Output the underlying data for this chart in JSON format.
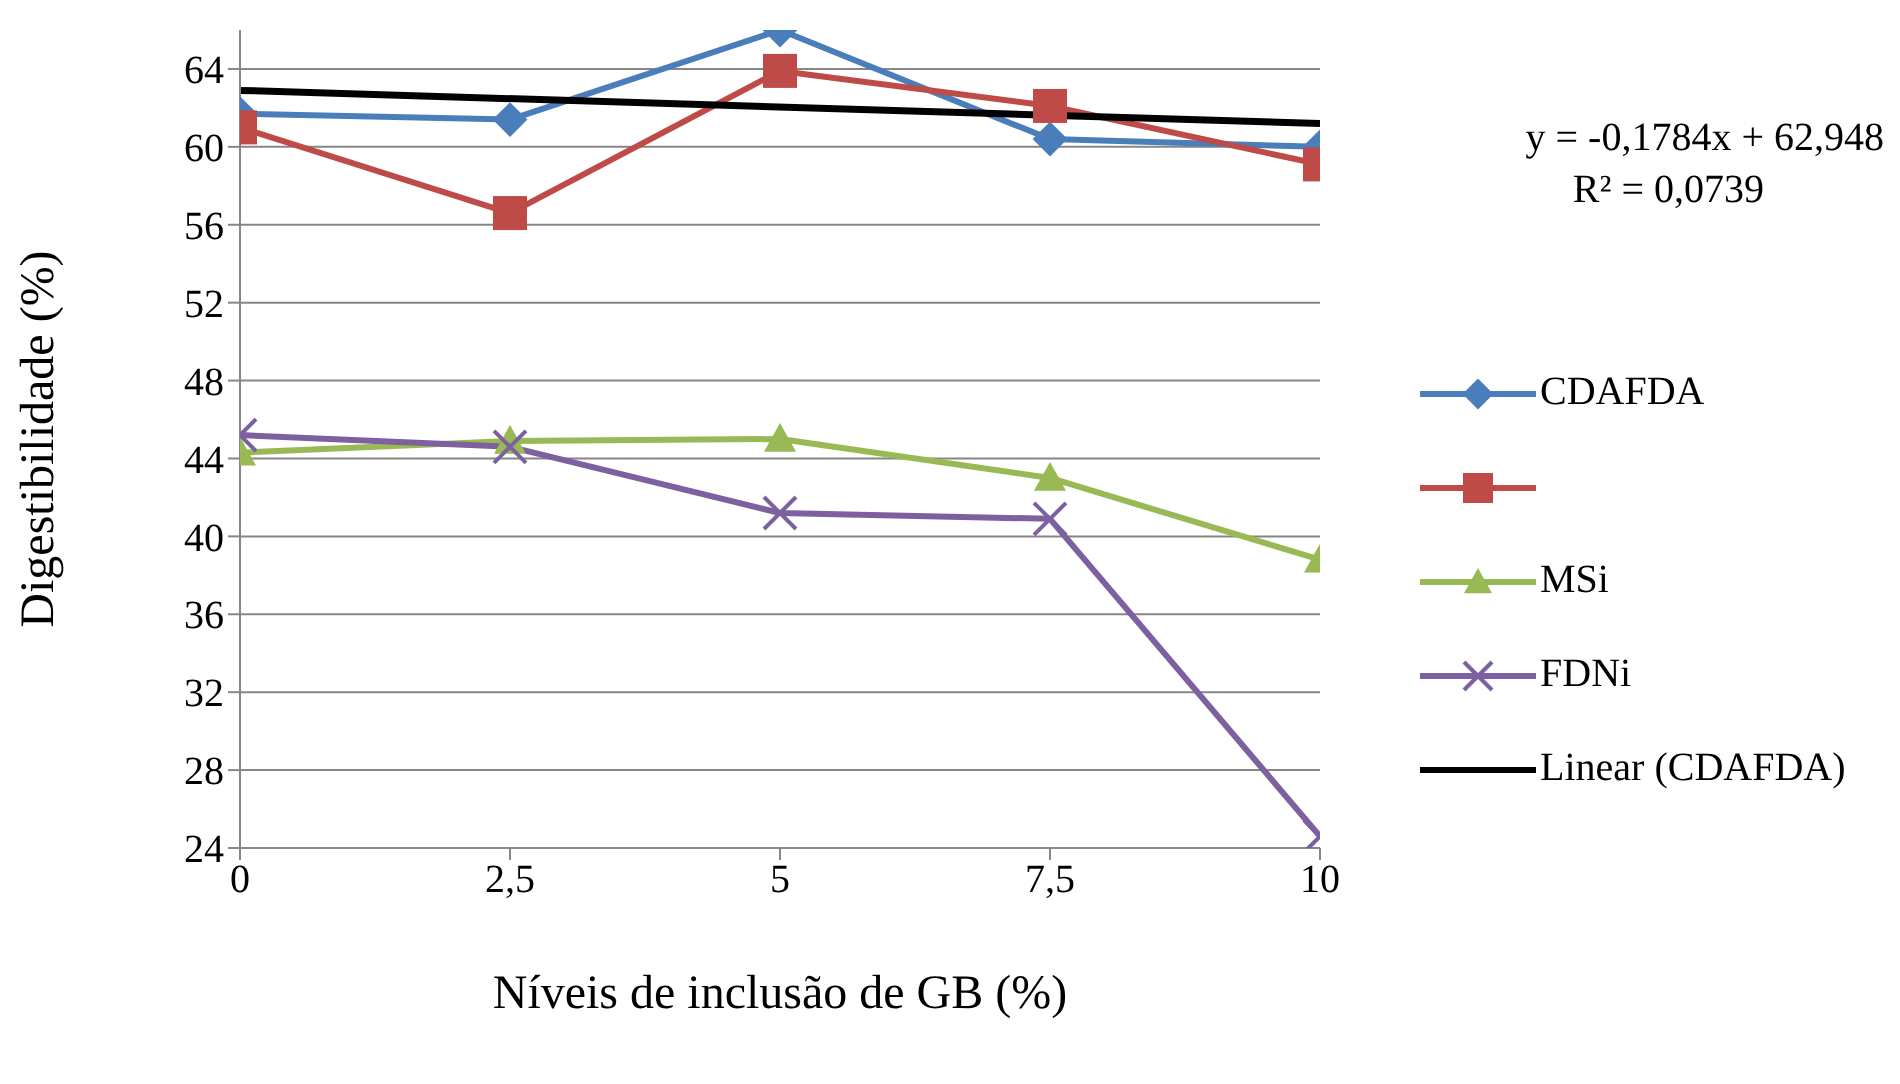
{
  "chart_data": {
    "type": "line",
    "xlabel": "Níveis de inclusão de GB (%)",
    "ylabel": "Digestibilidade (%)",
    "x": [
      0,
      2.5,
      5,
      7.5,
      10
    ],
    "xlim": [
      0,
      10
    ],
    "xticks": [
      0,
      {
        "value": 2.5,
        "label": "2,5"
      },
      5,
      {
        "value": 7.5,
        "label": "7,5"
      },
      10
    ],
    "ylim": [
      24,
      66
    ],
    "yticks": [
      24,
      28,
      32,
      36,
      40,
      44,
      48,
      52,
      56,
      60,
      64
    ],
    "grid": "y",
    "legend": "right",
    "series": [
      {
        "name": "CDAFDA",
        "color": "#4a7ebb",
        "marker": "diamond",
        "values": [
          61.7,
          61.4,
          66,
          60.4,
          60.0
        ]
      },
      {
        "color": "#be4b48",
        "marker": "square",
        "values": [
          61.0,
          56.6,
          63.9,
          62.1,
          59.1
        ]
      },
      {
        "name": "MSi",
        "color": "#98b954",
        "marker": "triangle",
        "values": [
          44.3,
          44.9,
          45.0,
          43.0,
          38.8
        ]
      },
      {
        "name": "FDNi",
        "color": "#7d60a0",
        "marker": "cross",
        "values": [
          45.2,
          44.6,
          41.2,
          40.9,
          24.6
        ]
      },
      {
        "name": "Linear (CDAFDA)",
        "color": "#000000",
        "marker": "none",
        "x": [
          0,
          10
        ],
        "values": [
          62.9,
          61.2
        ]
      }
    ],
    "annotations": [
      "y = -0,1784x + 62,948",
      "R² = 0,0739"
    ]
  }
}
